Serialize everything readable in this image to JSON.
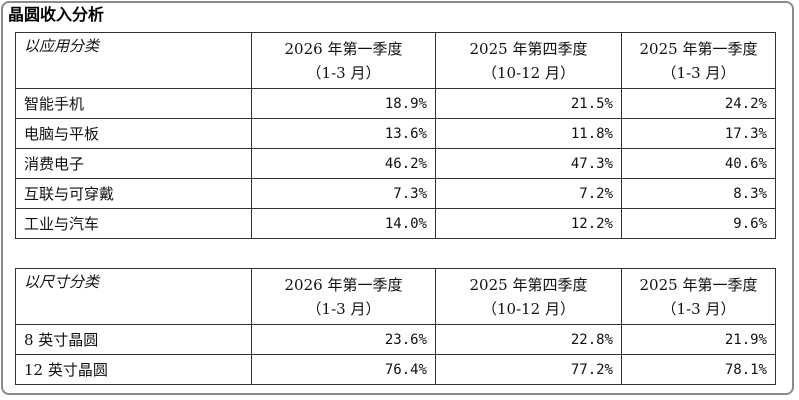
{
  "title": "晶圆收入分析",
  "table1": {
    "category": "以应用分类",
    "headers": [
      {
        "period": "2026 年第一季度",
        "months": "（1-3 月）"
      },
      {
        "period": "2025 年第四季度",
        "months": "（10-12 月）"
      },
      {
        "period": "2025 年第一季度",
        "months": "（1-3 月）"
      }
    ],
    "rows": [
      {
        "label": "智能手机",
        "values": [
          "18.9%",
          "21.5%",
          "24.2%"
        ]
      },
      {
        "label": "电脑与平板",
        "values": [
          "13.6%",
          "11.8%",
          "17.3%"
        ]
      },
      {
        "label": "消费电子",
        "values": [
          "46.2%",
          "47.3%",
          "40.6%"
        ]
      },
      {
        "label": "互联与可穿戴",
        "values": [
          "7.3%",
          "7.2%",
          "8.3%"
        ]
      },
      {
        "label": "工业与汽车",
        "values": [
          "14.0%",
          "12.2%",
          "9.6%"
        ]
      }
    ]
  },
  "table2": {
    "category": "以尺寸分类",
    "headers": [
      {
        "period": "2026 年第一季度",
        "months": "（1-3 月）"
      },
      {
        "period": "2025 年第四季度",
        "months": "（10-12 月）"
      },
      {
        "period": "2025 年第一季度",
        "months": "（1-3 月）"
      }
    ],
    "rows": [
      {
        "label": "8 英寸晶圆",
        "values": [
          "23.6%",
          "22.8%",
          "21.9%"
        ]
      },
      {
        "label": "12 英寸晶圆",
        "values": [
          "76.4%",
          "77.2%",
          "78.1%"
        ]
      }
    ]
  }
}
